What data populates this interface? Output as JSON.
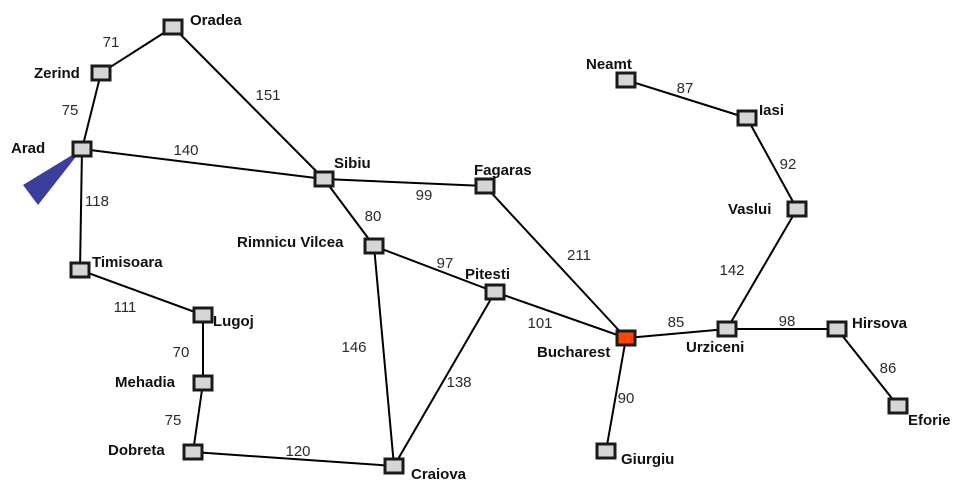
{
  "colors": {
    "edge": "#000000",
    "node_fill": "#d6d6d6",
    "node_border": "#1a1a1a",
    "goal_fill": "#ff4500",
    "start_marker": "#3a3f9e",
    "label_text": "#111111",
    "weight_text": "#2a2a2a"
  },
  "start_marker_icon": "start-triangle-icon",
  "cities": [
    {
      "id": "arad",
      "label": "Arad"
    },
    {
      "id": "zerind",
      "label": "Zerind"
    },
    {
      "id": "oradea",
      "label": "Oradea"
    },
    {
      "id": "sibiu",
      "label": "Sibiu"
    },
    {
      "id": "fagaras",
      "label": "Fagaras"
    },
    {
      "id": "timisoara",
      "label": "Timisoara"
    },
    {
      "id": "lugoj",
      "label": "Lugoj"
    },
    {
      "id": "mehadia",
      "label": "Mehadia"
    },
    {
      "id": "dobreta",
      "label": "Dobreta"
    },
    {
      "id": "craiova",
      "label": "Craiova"
    },
    {
      "id": "rimnicu",
      "label": "Rimnicu Vilcea"
    },
    {
      "id": "pitesti",
      "label": "Pitesti"
    },
    {
      "id": "bucharest",
      "label": "Bucharest",
      "goal": true
    },
    {
      "id": "giurgiu",
      "label": "Giurgiu"
    },
    {
      "id": "urziceni",
      "label": "Urziceni"
    },
    {
      "id": "hirsova",
      "label": "Hirsova"
    },
    {
      "id": "eforie",
      "label": "Eforie"
    },
    {
      "id": "vaslui",
      "label": "Vaslui"
    },
    {
      "id": "iasi",
      "label": "Iasi"
    },
    {
      "id": "neamt",
      "label": "Neamt"
    }
  ],
  "roads": [
    {
      "from": "zerind",
      "to": "oradea",
      "distance": "71"
    },
    {
      "from": "arad",
      "to": "zerind",
      "distance": "75"
    },
    {
      "from": "oradea",
      "to": "sibiu",
      "distance": "151"
    },
    {
      "from": "arad",
      "to": "sibiu",
      "distance": "140"
    },
    {
      "from": "arad",
      "to": "timisoara",
      "distance": "118"
    },
    {
      "from": "sibiu",
      "to": "fagaras",
      "distance": "99"
    },
    {
      "from": "sibiu",
      "to": "rimnicu",
      "distance": "80"
    },
    {
      "from": "timisoara",
      "to": "lugoj",
      "distance": "111"
    },
    {
      "from": "lugoj",
      "to": "mehadia",
      "distance": "70"
    },
    {
      "from": "mehadia",
      "to": "dobreta",
      "distance": "75"
    },
    {
      "from": "dobreta",
      "to": "craiova",
      "distance": "120"
    },
    {
      "from": "rimnicu",
      "to": "craiova",
      "distance": "146"
    },
    {
      "from": "rimnicu",
      "to": "pitesti",
      "distance": "97"
    },
    {
      "from": "pitesti",
      "to": "craiova",
      "distance": "138"
    },
    {
      "from": "pitesti",
      "to": "bucharest",
      "distance": "101"
    },
    {
      "from": "fagaras",
      "to": "bucharest",
      "distance": "211"
    },
    {
      "from": "bucharest",
      "to": "giurgiu",
      "distance": "90"
    },
    {
      "from": "bucharest",
      "to": "urziceni",
      "distance": "85"
    },
    {
      "from": "urziceni",
      "to": "hirsova",
      "distance": "98"
    },
    {
      "from": "hirsova",
      "to": "eforie",
      "distance": "86"
    },
    {
      "from": "urziceni",
      "to": "vaslui",
      "distance": "142"
    },
    {
      "from": "vaslui",
      "to": "iasi",
      "distance": "92"
    },
    {
      "from": "neamt",
      "to": "iasi",
      "distance": "87"
    }
  ]
}
